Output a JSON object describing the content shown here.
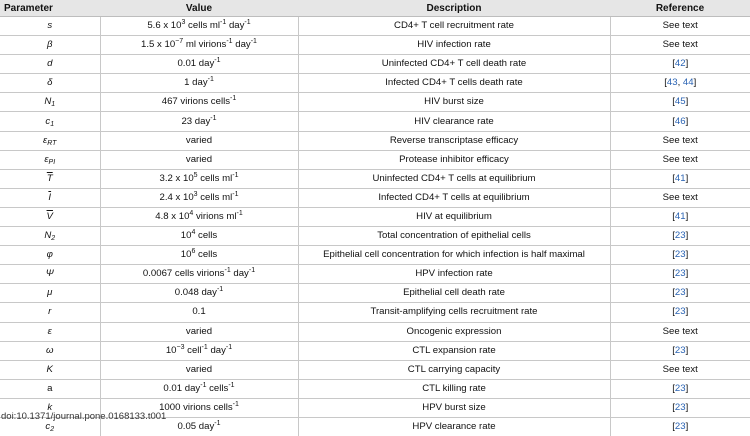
{
  "table": {
    "headers": {
      "parameter": "Parameter",
      "value": "Value",
      "description": "Description",
      "reference": "Reference"
    },
    "rows": [
      {
        "symbol": "s",
        "value": "5.6 x 10",
        "value_sup": "3",
        "value_tail": " cells ml",
        "value_sup2": "-1",
        "value_tail2": " day",
        "value_sup3": "-1",
        "description": "CD4+ T cell recruitment rate",
        "reference": "See text"
      },
      {
        "symbol": "β",
        "value": "1.5 x 10",
        "value_sup": "−7",
        "value_tail": " ml virions",
        "value_sup2": "-1",
        "value_tail2": " day",
        "value_sup3": "-1",
        "description": "HIV infection rate",
        "reference": "See text"
      },
      {
        "symbol": "d",
        "value": "0.01 day",
        "value_sup": "-1",
        "description": "Uninfected CD4+ T cell death rate",
        "ref_num": "42"
      },
      {
        "symbol": "δ",
        "value": "1 day",
        "value_sup": "-1",
        "description": "Infected CD4+ T cells death rate",
        "ref_num": "43",
        "ref_num2": "44"
      },
      {
        "symbol": "N",
        "symbol_sub": "1",
        "value": "467 virions cells",
        "value_sup": "-1",
        "description": "HIV burst size",
        "ref_num": "45"
      },
      {
        "symbol": "c",
        "symbol_sub": "1",
        "value": "23 day",
        "value_sup": "-1",
        "description": "HIV clearance rate",
        "ref_num": "46"
      },
      {
        "symbol": "ε",
        "symbol_sub": "RT",
        "value": "varied",
        "description": "Reverse transcriptase efficacy",
        "reference": "See text"
      },
      {
        "symbol": "ε",
        "symbol_sub": "PI",
        "value": "varied",
        "description": "Protease inhibitor efficacy",
        "reference": "See text"
      },
      {
        "symbol": "T",
        "symbol_bar": true,
        "value": "3.2 x 10",
        "value_sup": "5",
        "value_tail": " cells ml",
        "value_sup2": "-1",
        "description": "Uninfected CD4+ T cells at equilibrium",
        "ref_num": "41"
      },
      {
        "symbol": "I",
        "symbol_bar": true,
        "value": "2.4 x 10",
        "value_sup": "3",
        "value_tail": " cells ml",
        "value_sup2": "-1",
        "description": "Infected CD4+ T cells at equilibrium",
        "reference": "See text"
      },
      {
        "symbol": "V",
        "symbol_bar": true,
        "value": "4.8 x 10",
        "value_sup": "4",
        "value_tail": " virions ml",
        "value_sup2": "-1",
        "description": "HIV at equilibrium",
        "ref_num": "41"
      },
      {
        "symbol": "N",
        "symbol_sub": "2",
        "value": "10",
        "value_sup": "4",
        "value_tail": " cells",
        "description": "Total concentration of epithelial cells",
        "ref_num": "23"
      },
      {
        "symbol": "φ",
        "value": "10",
        "value_sup": "6",
        "value_tail": " cells",
        "description": "Epithelial cell concentration for which infection is half maximal",
        "ref_num": "23"
      },
      {
        "symbol": "Ψ",
        "value": "0.0067 cells virions",
        "value_sup": "-1",
        "value_tail": " day",
        "value_sup2": "-1",
        "description": "HPV infection rate",
        "ref_num": "23"
      },
      {
        "symbol": "μ",
        "value": "0.048 day",
        "value_sup": "-1",
        "description": "Epithelial cell death rate",
        "ref_num": "23"
      },
      {
        "symbol": "r",
        "value": "0.1",
        "description": "Transit-amplifying cells recruitment rate",
        "ref_num": "23"
      },
      {
        "symbol": "ε",
        "value": "varied",
        "description": "Oncogenic expression",
        "reference": "See text"
      },
      {
        "symbol": "ω",
        "value": "10",
        "value_sup": "−3",
        "value_tail": " cell",
        "value_sup2": "-1",
        "value_tail2": " day",
        "value_sup3": "-1",
        "description": "CTL expansion rate",
        "ref_num": "23"
      },
      {
        "symbol": "K",
        "value": "varied",
        "description": "CTL carrying capacity",
        "reference": "See text"
      },
      {
        "symbol": "a",
        "symbol_upright": true,
        "value": "0.01 day",
        "value_sup": "-1",
        "value_tail": " cells",
        "value_sup2": "-1",
        "description": "CTL killing rate",
        "ref_num": "23"
      },
      {
        "symbol": "k",
        "value": "1000 virions cells",
        "value_sup": "-1",
        "description": "HPV burst size",
        "ref_num": "23"
      },
      {
        "symbol": "c",
        "symbol_sub": "2",
        "value": "0.05 day",
        "value_sup": "-1",
        "description": "HPV clearance rate",
        "ref_num": "23"
      }
    ]
  },
  "caption": {
    "doi": "doi:10.1371/journal.pone.0168133.t001"
  },
  "colors": {
    "header_bg": "#e6e6e6",
    "rule": "#c8c8c8",
    "link": "#2a63b3"
  }
}
